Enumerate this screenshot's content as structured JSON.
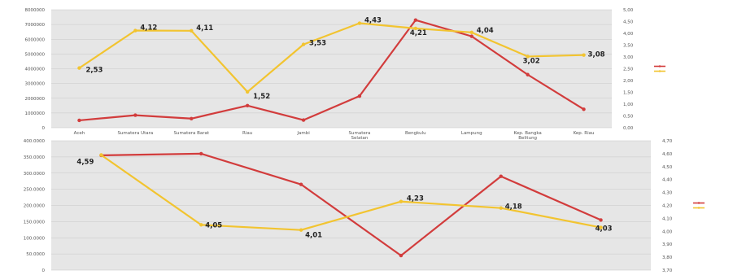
{
  "chart_data": [
    {
      "type": "line",
      "title": "",
      "categories": [
        "Aceh",
        "Sumatera Utara",
        "Sumatera Barat",
        "Riau",
        "Jambi",
        "Sumatera Selatan",
        "Bengkulu",
        "Lampung",
        "Kep. Bangka Belitung",
        "Kep. Riau"
      ],
      "y_left": {
        "ticks": [
          "0",
          "1000000",
          "2000000",
          "3000000",
          "4000000",
          "5000000",
          "6000000",
          "7000000",
          "8000000"
        ],
        "range": [
          0,
          8000000
        ]
      },
      "y_right": {
        "ticks": [
          "0,00",
          "0,50",
          "1,00",
          "1,50",
          "2,00",
          "2,50",
          "3,00",
          "3,50",
          "4,00",
          "4,50",
          "5,00"
        ],
        "range": [
          0,
          5
        ]
      },
      "series": [
        {
          "axis": "left",
          "color": "#d23c3c",
          "values": [
            500000,
            850000,
            620000,
            1500000,
            520000,
            2150000,
            7300000,
            6200000,
            3600000,
            1250000
          ]
        },
        {
          "axis": "right",
          "color": "#f2c430",
          "values": [
            2.53,
            4.12,
            4.11,
            1.52,
            3.53,
            4.43,
            4.21,
            4.04,
            3.02,
            3.08
          ]
        }
      ],
      "data_labels": [
        "2,53",
        "4,12",
        "4,11",
        "1,52",
        "3,53",
        "4,43",
        "4,21",
        "4,04",
        "3,02",
        "3,08"
      ],
      "grid": true,
      "legend": {
        "placement": "right",
        "entries": [
          "",
          ""
        ]
      }
    },
    {
      "type": "line",
      "title": "",
      "categories": [
        "",
        "",
        "",
        "",
        "",
        ""
      ],
      "y_left": {
        "ticks": [
          "0",
          "50.0000",
          "100.0000",
          "150.0000",
          "200.0000",
          "250.0000",
          "300.0000",
          "350.0000",
          "400.0000"
        ],
        "range": [
          0,
          4000000
        ]
      },
      "y_right": {
        "ticks": [
          "3,70",
          "3,80",
          "3,90",
          "4,00",
          "4,10",
          "4,20",
          "4,30",
          "4,40",
          "4,50",
          "4,60",
          "4,70"
        ],
        "range": [
          3.7,
          4.7
        ]
      },
      "series": [
        {
          "axis": "left",
          "color": "#d23c3c",
          "values": [
            3550000,
            3600000,
            2650000,
            450000,
            2900000,
            1550000
          ]
        },
        {
          "axis": "right",
          "color": "#f2c430",
          "values": [
            4.59,
            4.05,
            4.01,
            4.23,
            4.18,
            4.03
          ]
        }
      ],
      "data_labels": [
        "4,59",
        "4,05",
        "4,01",
        "4,23",
        "4,18",
        "4,03"
      ],
      "grid": true,
      "legend": {
        "placement": "right",
        "entries": [
          "",
          ""
        ]
      }
    }
  ]
}
